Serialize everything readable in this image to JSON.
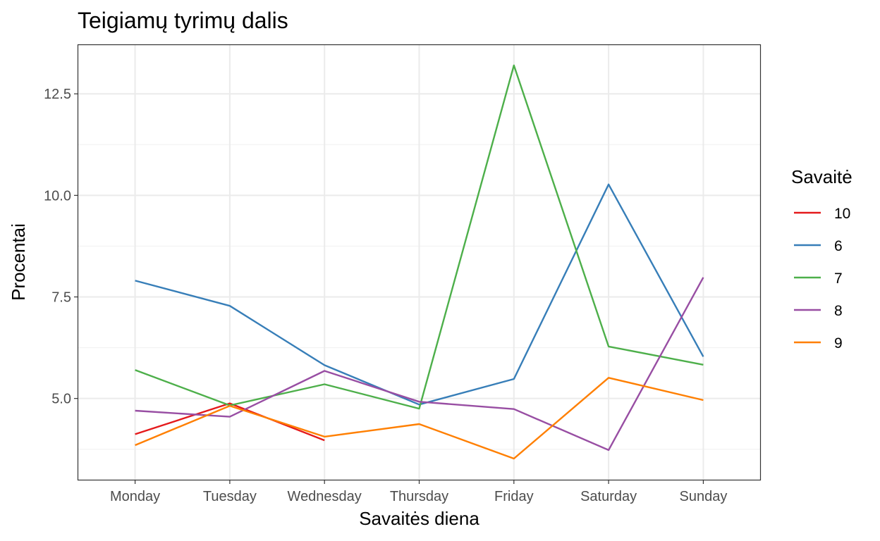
{
  "chart_data": {
    "type": "line",
    "title": "Teigiamų tyrimų dalis",
    "xlabel": "Savaitės diena",
    "ylabel": "Procentai",
    "categories": [
      "Monday",
      "Tuesday",
      "Wednesday",
      "Thursday",
      "Friday",
      "Saturday",
      "Sunday"
    ],
    "ylim": [
      3.0,
      13.7
    ],
    "yticks": [
      5.0,
      7.5,
      10.0,
      12.5
    ],
    "ytick_labels": [
      "5.0",
      "7.5",
      "10.0",
      "12.5"
    ],
    "grid": true,
    "legend": {
      "title": "Savaitė",
      "position": "right"
    },
    "series": [
      {
        "name": "10",
        "color": "#E41A1C",
        "values": [
          4.12,
          4.88,
          3.97,
          null,
          null,
          null,
          null
        ]
      },
      {
        "name": "6",
        "color": "#377EB8",
        "values": [
          7.9,
          7.28,
          5.82,
          4.85,
          5.48,
          10.27,
          6.03
        ]
      },
      {
        "name": "7",
        "color": "#4DAF4A",
        "values": [
          5.7,
          4.83,
          5.35,
          4.75,
          13.2,
          6.28,
          5.83
        ]
      },
      {
        "name": "8",
        "color": "#984EA3",
        "values": [
          4.7,
          4.55,
          5.68,
          4.92,
          4.74,
          3.73,
          7.98
        ]
      },
      {
        "name": "9",
        "color": "#FF7F00",
        "values": [
          3.85,
          4.82,
          4.06,
          4.37,
          3.52,
          5.51,
          4.96
        ]
      }
    ]
  }
}
